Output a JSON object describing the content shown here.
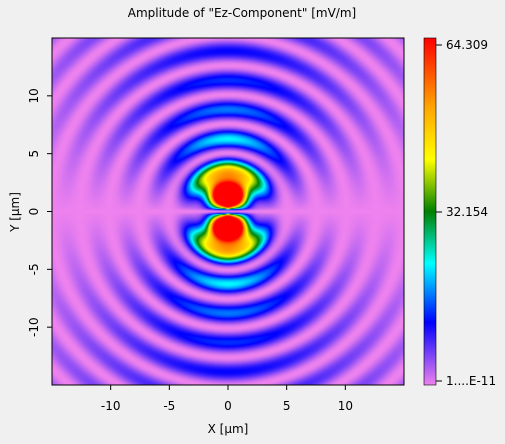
{
  "chart_data": {
    "type": "heatmap",
    "title": "Amplitude of \"Ez-Component\"  [mV/m]",
    "xlabel": "X [µm]",
    "ylabel": "Y [µm]",
    "xlim": [
      -15,
      15
    ],
    "ylim": [
      -15,
      15
    ],
    "x_ticks": [
      -10,
      -5,
      0,
      5,
      10
    ],
    "y_ticks": [
      -10,
      -5,
      0,
      5,
      10
    ],
    "x_tick_labels": [
      "-10",
      "-5",
      "0",
      "5",
      "10"
    ],
    "y_tick_labels": [
      "-10",
      "-5",
      "0",
      "5",
      "10"
    ],
    "colorbar": {
      "min_label": "1....E-11",
      "mid_label": "32.154",
      "max_label": "64.309",
      "min": 0,
      "mid": 32.154,
      "max": 64.309,
      "colors": [
        "#ee82ee",
        "#0000ff",
        "#00ffff",
        "#008000",
        "#ffff00",
        "#ffa500",
        "#ff0000"
      ]
    },
    "field_description": "dipole-like pattern with two peak lobes at about (0, 2) and (0, -2) of 64.309 mV/m and concentric ripples, null along y = 0"
  }
}
